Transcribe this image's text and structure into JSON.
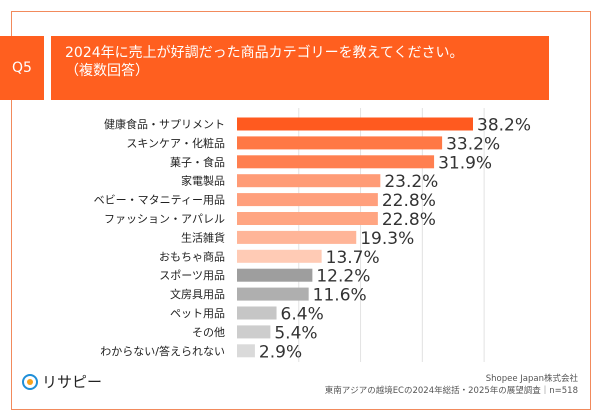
{
  "header": {
    "q_label": "Q5",
    "title_line1": "2024年に売上が好調だった商品カテゴリーを教えてください。",
    "title_line2": "（複数回答）"
  },
  "chart_data": {
    "type": "bar",
    "orientation": "horizontal",
    "categories": [
      "健康食品・サプリメント",
      "スキンケア・化粧品",
      "菓子・食品",
      "家電製品",
      "ベビー・マタニティー用品",
      "ファッション・アパレル",
      "生活雑貨",
      "おもちゃ商品",
      "スポーツ用品",
      "文房具用品",
      "ペット用品",
      "その他",
      "わからない/答えられない"
    ],
    "values": [
      38.2,
      33.2,
      31.9,
      23.2,
      22.8,
      22.8,
      19.3,
      13.7,
      12.2,
      11.6,
      6.4,
      5.4,
      2.9
    ],
    "value_labels": [
      "38.2%",
      "33.2%",
      "31.9%",
      "23.2%",
      "22.8%",
      "22.8%",
      "19.3%",
      "13.7%",
      "12.2%",
      "11.6%",
      "6.4%",
      "5.4%",
      "2.9%"
    ],
    "colors": [
      "#ff5a1f",
      "#ff7845",
      "#ff7f50",
      "#ff9b76",
      "#ff9f7c",
      "#ffa582",
      "#ffb598",
      "#ffcbb5",
      "#9e9e9e",
      "#afafaf",
      "#c6c6c6",
      "#cdcdcd",
      "#dadada"
    ],
    "xlim": [
      0,
      40
    ],
    "grid": true
  },
  "footer": {
    "company": "Shopee Japan株式会社",
    "survey": "東南アジアの越境ECの2024年総括・2025年の展望調査｜n=518",
    "logo_text": "リサピー"
  }
}
